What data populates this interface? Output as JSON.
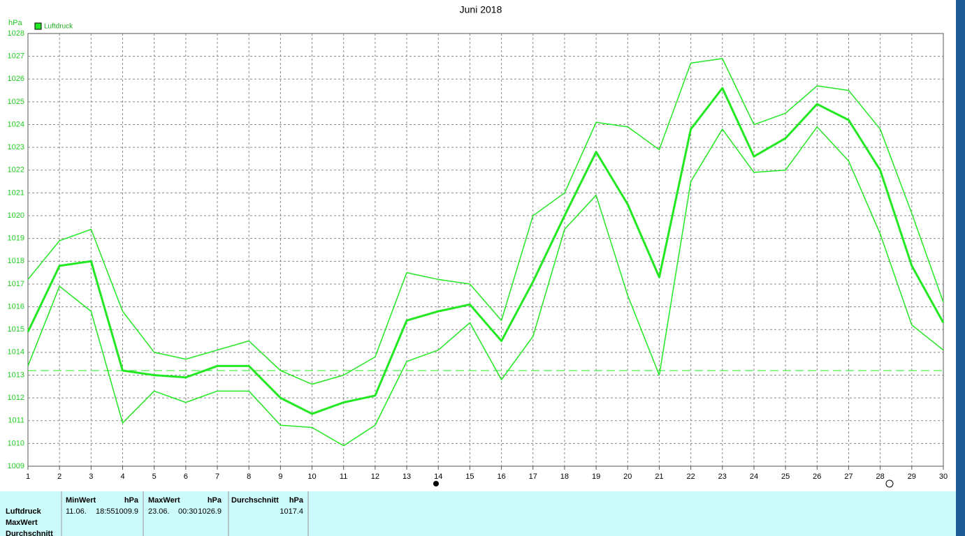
{
  "chart_data": {
    "type": "line",
    "title": "Juni 2018",
    "y_label": "hPa",
    "categories": [
      "1",
      "2",
      "3",
      "4",
      "5",
      "6",
      "7",
      "8",
      "9",
      "10",
      "11",
      "12",
      "13",
      "14",
      "15",
      "16",
      "17",
      "18",
      "19",
      "20",
      "21",
      "22",
      "23",
      "24",
      "25",
      "26",
      "27",
      "28",
      "29",
      "30"
    ],
    "series": [
      {
        "name": "Luftdruck",
        "color": "#22e822",
        "values": [
          1014.9,
          1017.8,
          1018.0,
          1013.2,
          1013.0,
          1012.9,
          1013.4,
          1013.4,
          1012.0,
          1011.3,
          1011.8,
          1012.1,
          1015.4,
          1015.8,
          1016.1,
          1014.5,
          1017.1,
          1020.0,
          1022.8,
          1020.5,
          1017.3,
          1023.8,
          1025.6,
          1022.6,
          1023.4,
          1024.9,
          1024.2,
          1022.0,
          1017.8,
          1015.3
        ],
        "max": [
          1017.2,
          1018.9,
          1019.4,
          1015.8,
          1014.0,
          1013.7,
          1014.1,
          1014.5,
          1013.2,
          1012.6,
          1013.0,
          1013.8,
          1017.5,
          1017.2,
          1017.0,
          1015.4,
          1020.0,
          1021.0,
          1024.1,
          1023.9,
          1022.9,
          1026.7,
          1026.9,
          1024.0,
          1024.5,
          1025.7,
          1025.5,
          1023.8,
          1020.1,
          1016.2
        ],
        "min": [
          1013.4,
          1016.9,
          1015.8,
          1010.9,
          1012.3,
          1011.8,
          1012.3,
          1012.3,
          1010.8,
          1010.7,
          1009.9,
          1010.8,
          1013.6,
          1014.1,
          1015.3,
          1012.8,
          1014.7,
          1019.4,
          1020.9,
          1016.5,
          1013.0,
          1021.5,
          1023.8,
          1021.9,
          1022.0,
          1023.9,
          1022.4,
          1019.2,
          1015.2,
          1014.1
        ]
      }
    ],
    "reference_line": 1013.2,
    "ylim": [
      1009,
      1028
    ],
    "yticks": [
      1009,
      1010,
      1011,
      1012,
      1013,
      1014,
      1015,
      1016,
      1017,
      1018,
      1019,
      1020,
      1021,
      1022,
      1023,
      1024,
      1025,
      1026,
      1027,
      1028
    ],
    "grid": true,
    "legend": "top-left"
  },
  "table": {
    "row_labels": [
      "Luftdruck",
      "MaxWert",
      "Durchschnitt"
    ],
    "columns": [
      {
        "header": "MinWert",
        "unit": "hPa",
        "date": "11.06.",
        "time": "18:55",
        "value": 1009.9
      },
      {
        "header": "MaxWert",
        "unit": "hPa",
        "date": "23.06.",
        "time": "00:30",
        "value": 1026.9
      },
      {
        "header": "Durchschnitt",
        "unit": "hPa",
        "value": 1017.4
      }
    ]
  }
}
